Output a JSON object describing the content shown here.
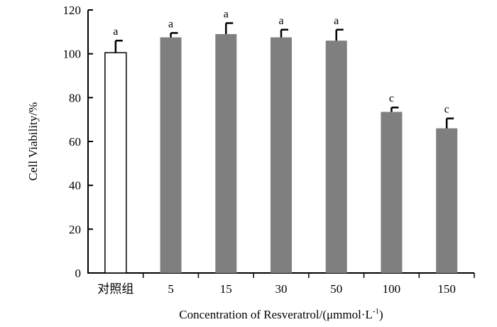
{
  "chart_data": {
    "type": "bar",
    "xlabel": "Concentration of Resveratrol/(μmmol·L⁻¹)",
    "xlabel_main": "Concentration of Resveratrol/(μmmol·L",
    "xlabel_sup": "-1",
    "xlabel_close": ")",
    "ylabel": "Cell Viability/%",
    "ylim": [
      0,
      120
    ],
    "yticks": [
      "0",
      "20",
      "40",
      "60",
      "80",
      "100",
      "120"
    ],
    "categories": [
      "对照组",
      "5",
      "15",
      "30",
      "50",
      "100",
      "150"
    ],
    "values": [
      100.5,
      107.5,
      109,
      107.5,
      106,
      73.5,
      66
    ],
    "errors": [
      5.5,
      2,
      5,
      3.5,
      5,
      2,
      4.5
    ],
    "significance": [
      "a",
      "a",
      "a",
      "a",
      "a",
      "c",
      "c"
    ],
    "colors": {
      "control_fill": "#ffffff",
      "treatment_fill": "#7f7f7f",
      "stroke": "#000000"
    },
    "grid": false,
    "legend": "none"
  }
}
